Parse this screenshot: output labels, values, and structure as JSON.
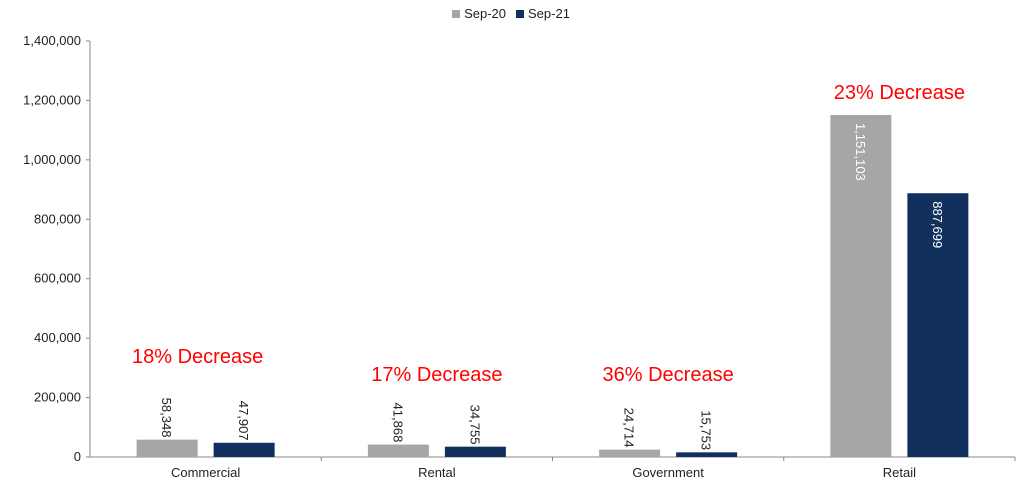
{
  "chart_data": {
    "type": "bar",
    "categories": [
      "Commercial",
      "Rental",
      "Government",
      "Retail"
    ],
    "series": [
      {
        "name": "Sep-20",
        "color": "#a6a6a6",
        "values": [
          58348,
          41868,
          24714,
          1151103
        ],
        "labels": [
          "58,348",
          "41,868",
          "24,714",
          "1,151,103"
        ]
      },
      {
        "name": "Sep-21",
        "color": "#12305e",
        "values": [
          47907,
          34755,
          15753,
          887699
        ],
        "labels": [
          "47,907",
          "34,755",
          "15,753",
          "887,699"
        ]
      }
    ],
    "annotations": [
      "18% Decrease",
      "17% Decrease",
      "36% Decrease",
      "23% Decrease"
    ],
    "annotation_color": "#ff0000",
    "ylim": [
      0,
      1400000
    ],
    "y_ticks": [
      "0",
      "200,000",
      "400,000",
      "600,000",
      "800,000",
      "1,000,000",
      "1,200,000",
      "1,400,000"
    ],
    "legend_position": "top-center",
    "grid": false
  }
}
